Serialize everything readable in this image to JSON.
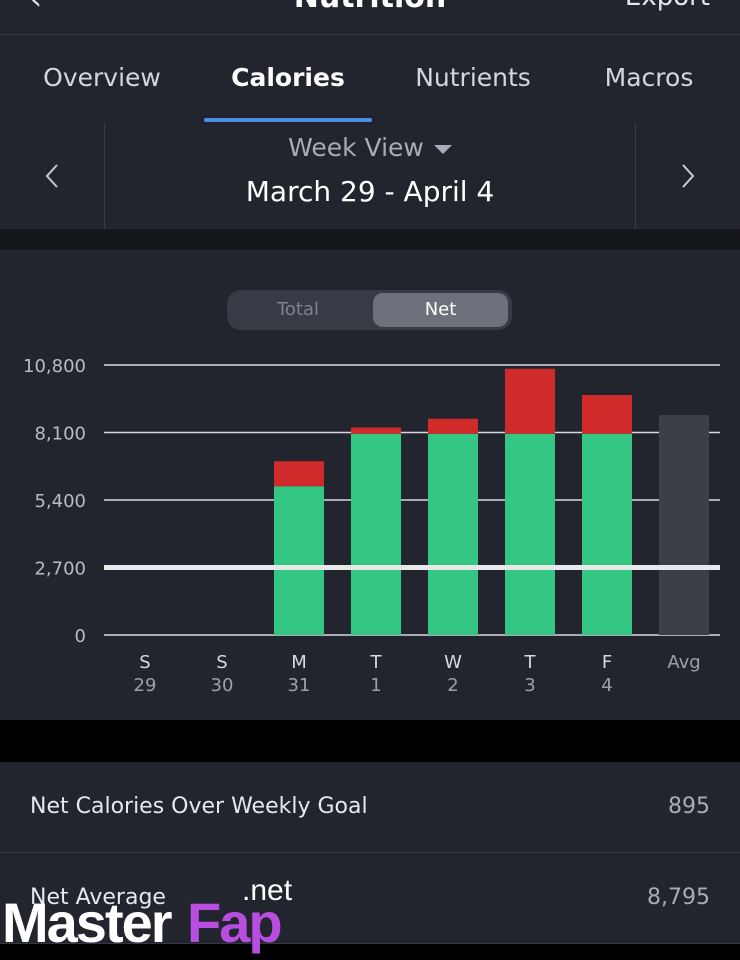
{
  "header": {
    "title": "Nutrition",
    "export_label": "Export"
  },
  "tabs": [
    {
      "label": "Overview"
    },
    {
      "label": "Calories"
    },
    {
      "label": "Nutrients"
    },
    {
      "label": "Macros"
    }
  ],
  "active_tab": "Calories",
  "date_nav": {
    "view_label": "Week View",
    "range": "March 29 - April 4"
  },
  "toggle": {
    "total_label": "Total",
    "net_label": "Net",
    "selected": "Net"
  },
  "colors": {
    "under_goal": "#34c784",
    "over_goal": "#d12a2a",
    "average": "#3c3f48",
    "accent": "#4a90e2",
    "goal_line": "#e8e8e8"
  },
  "chart_data": {
    "type": "bar",
    "stacked": true,
    "y_ticks": [
      "10,800",
      "8,100",
      "5,400",
      "2,700",
      "0"
    ],
    "ylim": [
      0,
      10800
    ],
    "goal_line": 2700,
    "categories": [
      {
        "day": "S",
        "date": "29"
      },
      {
        "day": "S",
        "date": "30"
      },
      {
        "day": "M",
        "date": "31"
      },
      {
        "day": "T",
        "date": "1"
      },
      {
        "day": "W",
        "date": "2"
      },
      {
        "day": "T",
        "date": "3"
      },
      {
        "day": "F",
        "date": "4"
      },
      {
        "day": "Avg",
        "date": ""
      }
    ],
    "series": [
      {
        "values": [
          0,
          0,
          5950,
          8050,
          8050,
          8050,
          8050,
          8795
        ]
      },
      {
        "values": [
          0,
          0,
          1000,
          250,
          600,
          2600,
          1550,
          0
        ]
      }
    ]
  },
  "summary": [
    {
      "label": "Net Calories Over Weekly Goal",
      "value": "895"
    },
    {
      "label": "Net Average",
      "value": "8,795"
    }
  ],
  "watermark": {
    "part1": "Master",
    "part2": "Fap",
    "part3": ".net"
  }
}
